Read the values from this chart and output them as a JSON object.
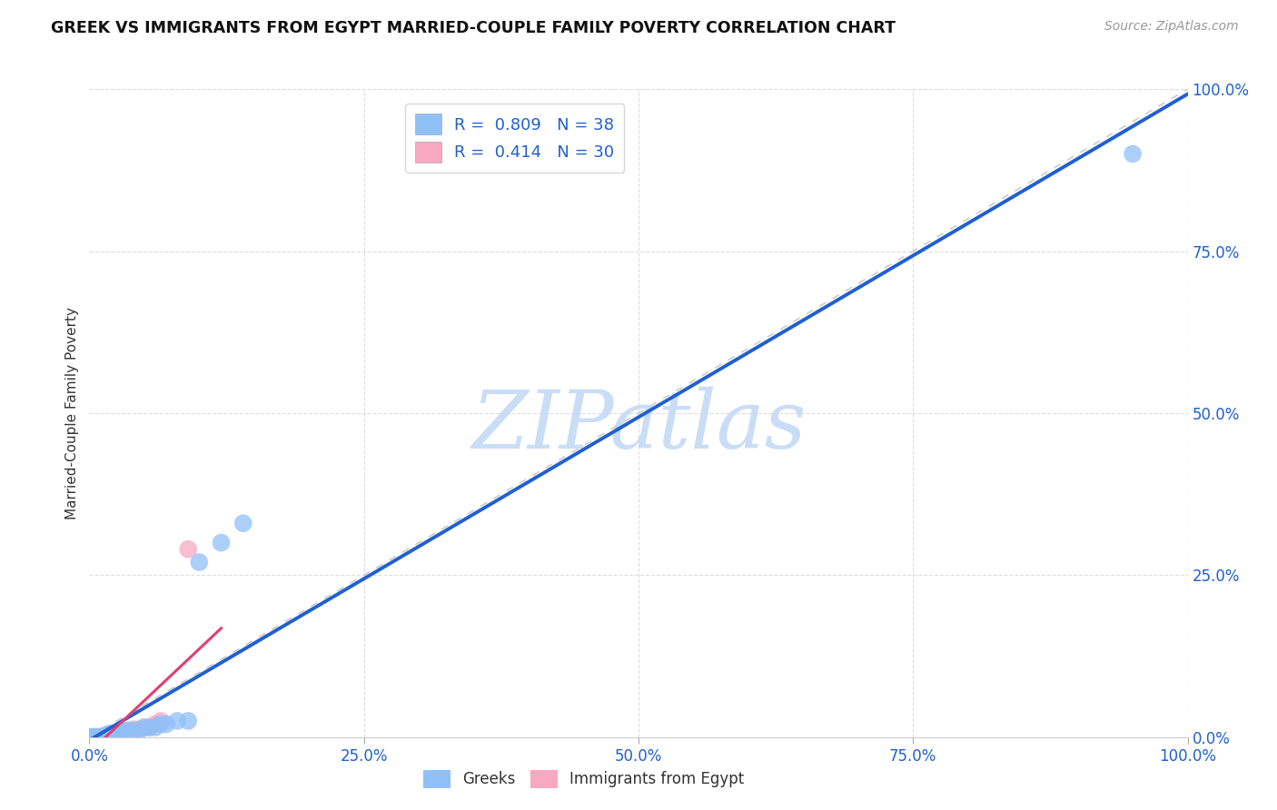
{
  "title": "GREEK VS IMMIGRANTS FROM EGYPT MARRIED-COUPLE FAMILY POVERTY CORRELATION CHART",
  "source": "Source: ZipAtlas.com",
  "ylabel": "Married-Couple Family Poverty",
  "xticklabels": [
    "0.0%",
    "25.0%",
    "50.0%",
    "75.0%",
    "100.0%"
  ],
  "xticks": [
    0.0,
    0.25,
    0.5,
    0.75,
    1.0
  ],
  "yticklabels_right": [
    "0.0%",
    "25.0%",
    "50.0%",
    "75.0%",
    "100.0%"
  ],
  "yticks_right": [
    0.0,
    0.25,
    0.5,
    0.75,
    1.0
  ],
  "xlim": [
    0.0,
    1.0
  ],
  "ylim": [
    0.0,
    1.0
  ],
  "greek_color": "#90c0f8",
  "egypt_color": "#f8a8c0",
  "greek_line_color": "#2060d0",
  "egypt_line_color": "#e04070",
  "diagonal_color": "#cccccc",
  "watermark_text": "ZIPatlas",
  "watermark_color": "#c0d8f5",
  "grid_color": "#dddddd",
  "title_color": "#111111",
  "axis_tick_color": "#2060d0",
  "legend_text_color": "#2060d0",
  "greek_R": 0.809,
  "egypt_R": 0.414,
  "greek_N": 38,
  "egypt_N": 30,
  "greek_scatter_x": [
    0.002,
    0.003,
    0.004,
    0.005,
    0.005,
    0.006,
    0.007,
    0.008,
    0.008,
    0.009,
    0.01,
    0.01,
    0.011,
    0.012,
    0.013,
    0.014,
    0.015,
    0.016,
    0.018,
    0.02,
    0.022,
    0.025,
    0.028,
    0.03,
    0.035,
    0.04,
    0.045,
    0.05,
    0.055,
    0.06,
    0.065,
    0.07,
    0.08,
    0.09,
    0.1,
    0.12,
    0.14,
    0.95
  ],
  "greek_scatter_y": [
    0.0,
    0.0,
    0.0,
    0.0,
    0.0,
    0.0,
    0.0,
    0.0,
    0.0,
    0.0,
    0.0,
    0.0,
    0.0,
    0.0,
    0.0,
    0.002,
    0.002,
    0.003,
    0.005,
    0.005,
    0.005,
    0.007,
    0.007,
    0.008,
    0.01,
    0.01,
    0.01,
    0.015,
    0.015,
    0.015,
    0.02,
    0.02,
    0.025,
    0.025,
    0.27,
    0.3,
    0.33,
    0.9
  ],
  "egypt_scatter_x": [
    0.002,
    0.003,
    0.004,
    0.005,
    0.005,
    0.006,
    0.007,
    0.008,
    0.009,
    0.01,
    0.011,
    0.012,
    0.013,
    0.014,
    0.015,
    0.016,
    0.018,
    0.02,
    0.022,
    0.025,
    0.028,
    0.03,
    0.035,
    0.04,
    0.045,
    0.05,
    0.055,
    0.06,
    0.065,
    0.09
  ],
  "egypt_scatter_y": [
    0.0,
    0.0,
    0.0,
    0.0,
    0.0,
    0.0,
    0.0,
    0.0,
    0.0,
    0.0,
    0.0,
    0.001,
    0.001,
    0.002,
    0.002,
    0.003,
    0.003,
    0.005,
    0.005,
    0.007,
    0.008,
    0.01,
    0.01,
    0.012,
    0.012,
    0.015,
    0.015,
    0.02,
    0.025,
    0.29
  ]
}
